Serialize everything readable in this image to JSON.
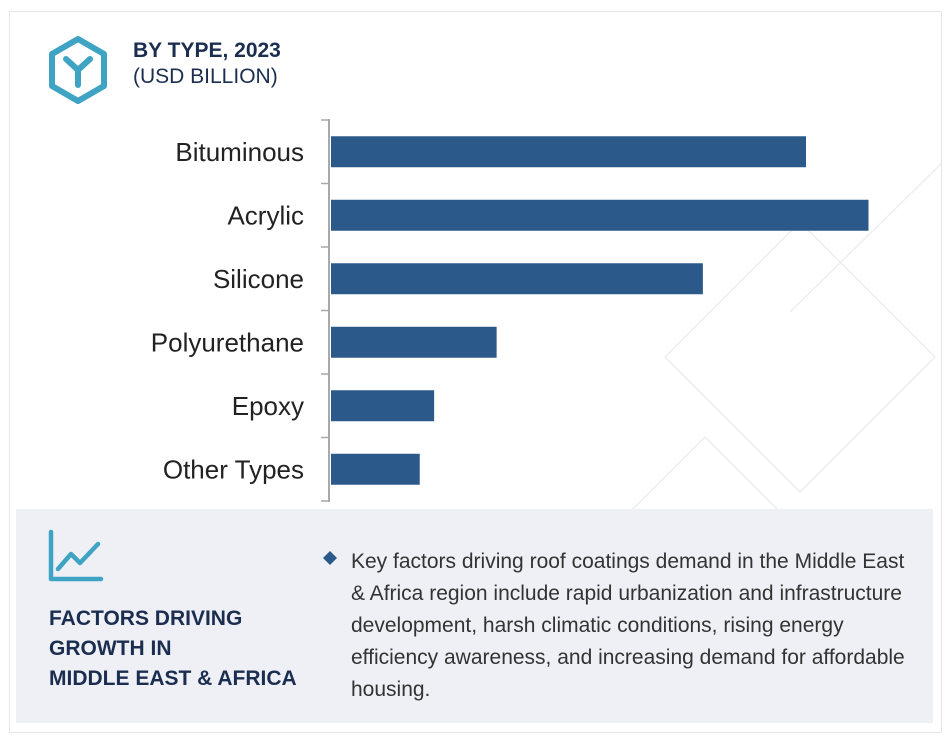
{
  "header": {
    "title": "BY TYPE, 2023",
    "subtitle": "(USD BILLION)",
    "logo_icon": "y-hexagon-icon"
  },
  "colors": {
    "bar": "#2b5a8a",
    "accent": "#3fa3c3",
    "heading": "#1b2e4f",
    "panel_bg": "#eef0f6",
    "axis": "#a9a9a9"
  },
  "chart_data": {
    "type": "bar",
    "orientation": "horizontal",
    "categories": [
      "Bituminous",
      "Acrylic",
      "Silicone",
      "Polyurethane",
      "Epoxy",
      "Other Types"
    ],
    "values": [
      7.6,
      8.6,
      5.95,
      2.65,
      1.65,
      1.42
    ],
    "title": "BY TYPE, 2023",
    "subtitle": "(USD BILLION)",
    "xlim": [
      0,
      9.2
    ],
    "grid": false,
    "legend": "none"
  },
  "panel": {
    "icon": "trend-line-icon",
    "heading_lines": [
      "FACTORS DRIVING",
      "GROWTH IN",
      "MIDDLE EAST & AFRICA"
    ],
    "bullet_icon": "diamond-bullet-icon",
    "body": "Key factors driving roof coatings demand in the Middle East & Africa region include rapid urbanization and infrastructure development, harsh climatic conditions, rising energy efficiency awareness, and increasing demand for affordable housing."
  }
}
